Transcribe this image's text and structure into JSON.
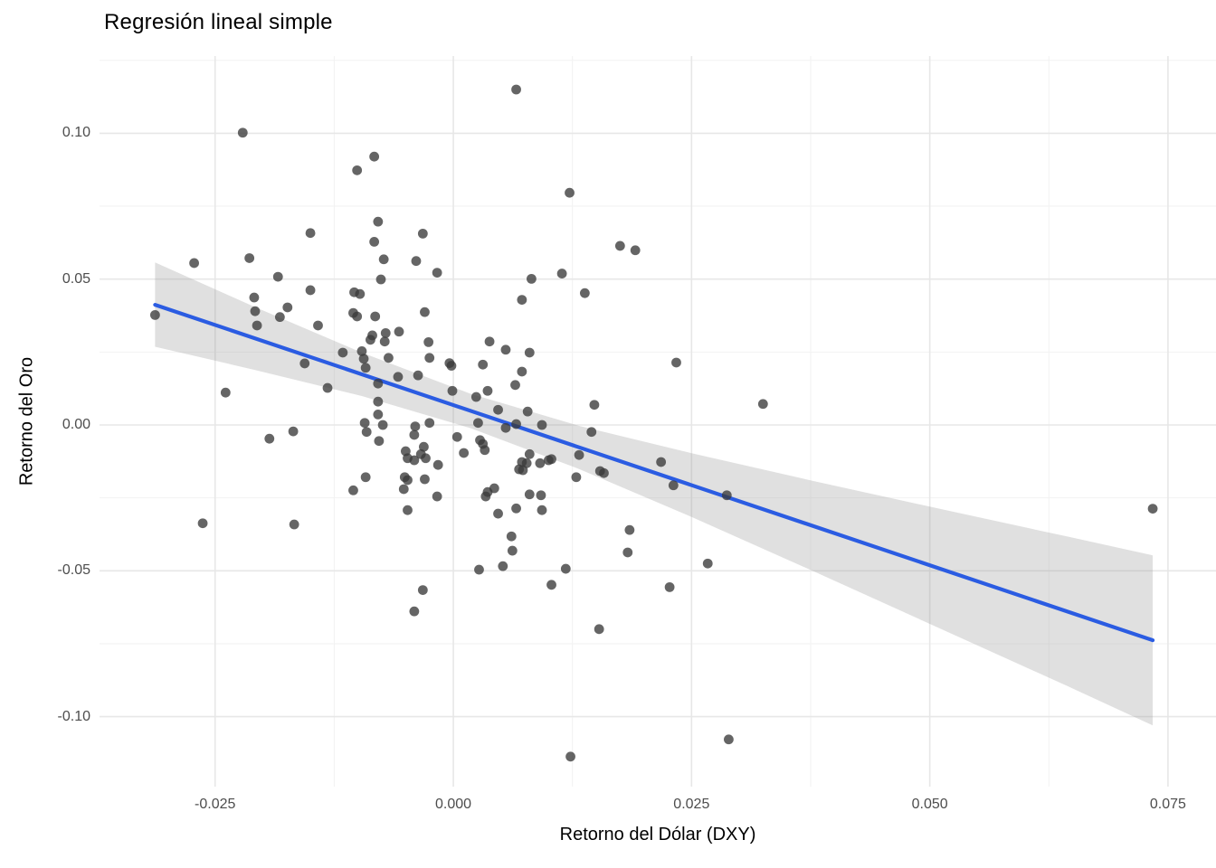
{
  "title": "Regresión lineal simple",
  "chart_data": {
    "type": "scatter",
    "title": "Regresión lineal simple",
    "xlabel": "Retorno del Dólar (DXY)",
    "ylabel": "Retorno del Oro",
    "x_range": [
      -0.03713,
      0.08004
    ],
    "y_range": [
      -0.12399,
      0.12647
    ],
    "grid": true,
    "legend": "none",
    "x_ticks": [
      -0.025,
      0.0,
      0.025,
      0.05,
      0.075
    ],
    "x_tick_labels": [
      "-0.025",
      "0.000",
      "0.025",
      "0.050",
      "0.075"
    ],
    "x_minor_ticks": [
      -0.0125,
      0.0125,
      0.0375,
      0.0625
    ],
    "y_ticks": [
      0.1,
      0.05,
      0.0,
      -0.05,
      -0.1
    ],
    "y_tick_labels": [
      "0.10",
      "0.05",
      "0.00",
      "-0.05",
      "-0.10"
    ],
    "y_minor_ticks": [
      0.125,
      0.075,
      0.025,
      -0.025,
      -0.075
    ],
    "points": [
      [
        0.0066,
        0.115
      ],
      [
        -0.0221,
        0.1002
      ],
      [
        -0.0083,
        0.092
      ],
      [
        -0.0101,
        0.0873
      ],
      [
        0.0122,
        0.0796
      ],
      [
        -0.0079,
        0.0697
      ],
      [
        -0.015,
        0.0658
      ],
      [
        -0.0032,
        0.0656
      ],
      [
        -0.0083,
        0.0628
      ],
      [
        0.0175,
        0.0614
      ],
      [
        0.0191,
        0.0599
      ],
      [
        -0.0073,
        0.0568
      ],
      [
        -0.0039,
        0.0562
      ],
      [
        -0.0272,
        0.0555
      ],
      [
        -0.0214,
        0.0572
      ],
      [
        -0.0017,
        0.0522
      ],
      [
        0.0114,
        0.0519
      ],
      [
        -0.0184,
        0.0508
      ],
      [
        -0.0076,
        0.0499
      ],
      [
        0.0082,
        0.0501
      ],
      [
        0.0138,
        0.0452
      ],
      [
        -0.015,
        0.0462
      ],
      [
        -0.0098,
        0.0449
      ],
      [
        0.0072,
        0.0429
      ],
      [
        -0.0104,
        0.0455
      ],
      [
        -0.0209,
        0.0437
      ],
      [
        -0.0174,
        0.0403
      ],
      [
        -0.0182,
        0.037
      ],
      [
        -0.0208,
        0.039
      ],
      [
        -0.0206,
        0.0341
      ],
      [
        -0.0142,
        0.0341
      ],
      [
        -0.0105,
        0.0384
      ],
      [
        -0.0101,
        0.0372
      ],
      [
        -0.0082,
        0.0372
      ],
      [
        -0.003,
        0.0387
      ],
      [
        -0.0313,
        0.0377
      ],
      [
        -0.0085,
        0.0307
      ],
      [
        -0.0071,
        0.0315
      ],
      [
        -0.0057,
        0.032
      ],
      [
        -0.0087,
        0.0292
      ],
      [
        -0.0072,
        0.0286
      ],
      [
        -0.0026,
        0.0284
      ],
      [
        0.0038,
        0.0286
      ],
      [
        -0.0116,
        0.0248
      ],
      [
        -0.0096,
        0.0253
      ],
      [
        -0.0094,
        0.0227
      ],
      [
        -0.0068,
        0.023
      ],
      [
        -0.0156,
        0.0211
      ],
      [
        -0.0092,
        0.0196
      ],
      [
        -0.0025,
        0.023
      ],
      [
        -0.0004,
        0.0212
      ],
      [
        -0.0002,
        0.0203
      ],
      [
        0.0031,
        0.0207
      ],
      [
        0.0055,
        0.0258
      ],
      [
        0.008,
        0.0248
      ],
      [
        0.0072,
        0.0183
      ],
      [
        0.0234,
        0.0214
      ],
      [
        -0.0058,
        0.0165
      ],
      [
        -0.0037,
        0.017
      ],
      [
        -0.0132,
        0.0127
      ],
      [
        -0.0079,
        0.0142
      ],
      [
        -0.0239,
        0.0111
      ],
      [
        -0.0001,
        0.0117
      ],
      [
        0.0024,
        0.0096
      ],
      [
        0.0036,
        0.0117
      ],
      [
        0.0065,
        0.0137
      ],
      [
        0.0148,
        0.0069
      ],
      [
        0.0325,
        0.0072
      ],
      [
        0.0047,
        0.0052
      ],
      [
        -0.0079,
        0.008
      ],
      [
        -0.0079,
        0.0036
      ],
      [
        -0.0093,
        0.0007
      ],
      [
        -0.0074,
        0.0
      ],
      [
        -0.0025,
        0.0007
      ],
      [
        -0.004,
        -0.0005
      ],
      [
        0.0026,
        0.0007
      ],
      [
        0.0066,
        0.0003
      ],
      [
        0.0093,
        0.0
      ],
      [
        0.0078,
        0.0046
      ],
      [
        0.0055,
        -0.001
      ],
      [
        0.0145,
        -0.0024
      ],
      [
        -0.0168,
        -0.0022
      ],
      [
        -0.0193,
        -0.0047
      ],
      [
        -0.0091,
        -0.0024
      ],
      [
        -0.0041,
        -0.0034
      ],
      [
        -0.0078,
        -0.0055
      ],
      [
        0.0004,
        -0.0041
      ],
      [
        0.0028,
        -0.0052
      ],
      [
        0.0031,
        -0.0065
      ],
      [
        0.0033,
        -0.0086
      ],
      [
        -0.0031,
        -0.0075
      ],
      [
        -0.0034,
        -0.01
      ],
      [
        -0.005,
        -0.009
      ],
      [
        -0.0048,
        -0.0114
      ],
      [
        -0.0041,
        -0.0121
      ],
      [
        -0.0029,
        -0.0114
      ],
      [
        0.0011,
        -0.0096
      ],
      [
        -0.0016,
        -0.0137
      ],
      [
        0.008,
        -0.01
      ],
      [
        0.0072,
        -0.0127
      ],
      [
        0.0077,
        -0.0131
      ],
      [
        0.0069,
        -0.0152
      ],
      [
        0.0073,
        -0.0155
      ],
      [
        0.0091,
        -0.0131
      ],
      [
        0.01,
        -0.0121
      ],
      [
        0.0103,
        -0.0117
      ],
      [
        0.0132,
        -0.0103
      ],
      [
        0.0129,
        -0.0179
      ],
      [
        0.0154,
        -0.0158
      ],
      [
        0.0158,
        -0.0165
      ],
      [
        0.0218,
        -0.0127
      ],
      [
        0.0231,
        -0.0207
      ],
      [
        -0.0092,
        -0.0179
      ],
      [
        -0.0051,
        -0.0179
      ],
      [
        -0.0048,
        -0.0189
      ],
      [
        -0.003,
        -0.0186
      ],
      [
        -0.0105,
        -0.0224
      ],
      [
        -0.0052,
        -0.022
      ],
      [
        -0.0017,
        -0.0245
      ],
      [
        0.0036,
        -0.023
      ],
      [
        0.0043,
        -0.0217
      ],
      [
        0.0034,
        -0.0245
      ],
      [
        0.0047,
        -0.0304
      ],
      [
        0.0066,
        -0.0286
      ],
      [
        0.008,
        -0.0238
      ],
      [
        0.0092,
        -0.0241
      ],
      [
        0.0093,
        -0.0292
      ],
      [
        0.0287,
        -0.0241
      ],
      [
        -0.0048,
        -0.0292
      ],
      [
        -0.0263,
        -0.0337
      ],
      [
        -0.0167,
        -0.0341
      ],
      [
        0.0061,
        -0.0382
      ],
      [
        0.0062,
        -0.0431
      ],
      [
        0.0185,
        -0.036
      ],
      [
        0.0183,
        -0.0437
      ],
      [
        0.0027,
        -0.0496
      ],
      [
        0.0052,
        -0.0484
      ],
      [
        0.0118,
        -0.0493
      ],
      [
        0.0103,
        -0.0548
      ],
      [
        0.0267,
        -0.0475
      ],
      [
        0.0227,
        -0.0556
      ],
      [
        -0.0032,
        -0.0566
      ],
      [
        -0.0041,
        -0.0639
      ],
      [
        0.0153,
        -0.07
      ],
      [
        0.0734,
        -0.0287
      ],
      [
        0.0289,
        -0.1078
      ],
      [
        0.0123,
        -0.1137
      ]
    ],
    "regression_line": {
      "x": [
        -0.0313,
        0.0734
      ],
      "y": [
        0.0412,
        -0.0738
      ]
    },
    "confidence_band": {
      "x": [
        -0.0313,
        -0.021,
        -0.0096,
        0.0018,
        0.0132,
        0.0249,
        0.0379,
        0.0521,
        0.0645,
        0.0734
      ],
      "upper": [
        0.0557,
        0.0407,
        0.0248,
        0.0107,
        -0.0003,
        -0.0096,
        -0.0193,
        -0.0295,
        -0.0383,
        -0.0447
      ],
      "lower": [
        0.0268,
        0.019,
        0.0099,
        -0.0011,
        -0.0151,
        -0.0314,
        -0.0503,
        -0.0713,
        -0.0896,
        -0.103
      ]
    },
    "colors": {
      "point": "#3a3a3a",
      "point_opacity": 0.78,
      "line": "#2b5ce2",
      "band": "#999999",
      "band_opacity": 0.3,
      "grid_major": "#e7e7e7",
      "grid_minor": "#f2f2f2",
      "tick_label": "#4d4d4d",
      "background": "#ffffff"
    }
  }
}
